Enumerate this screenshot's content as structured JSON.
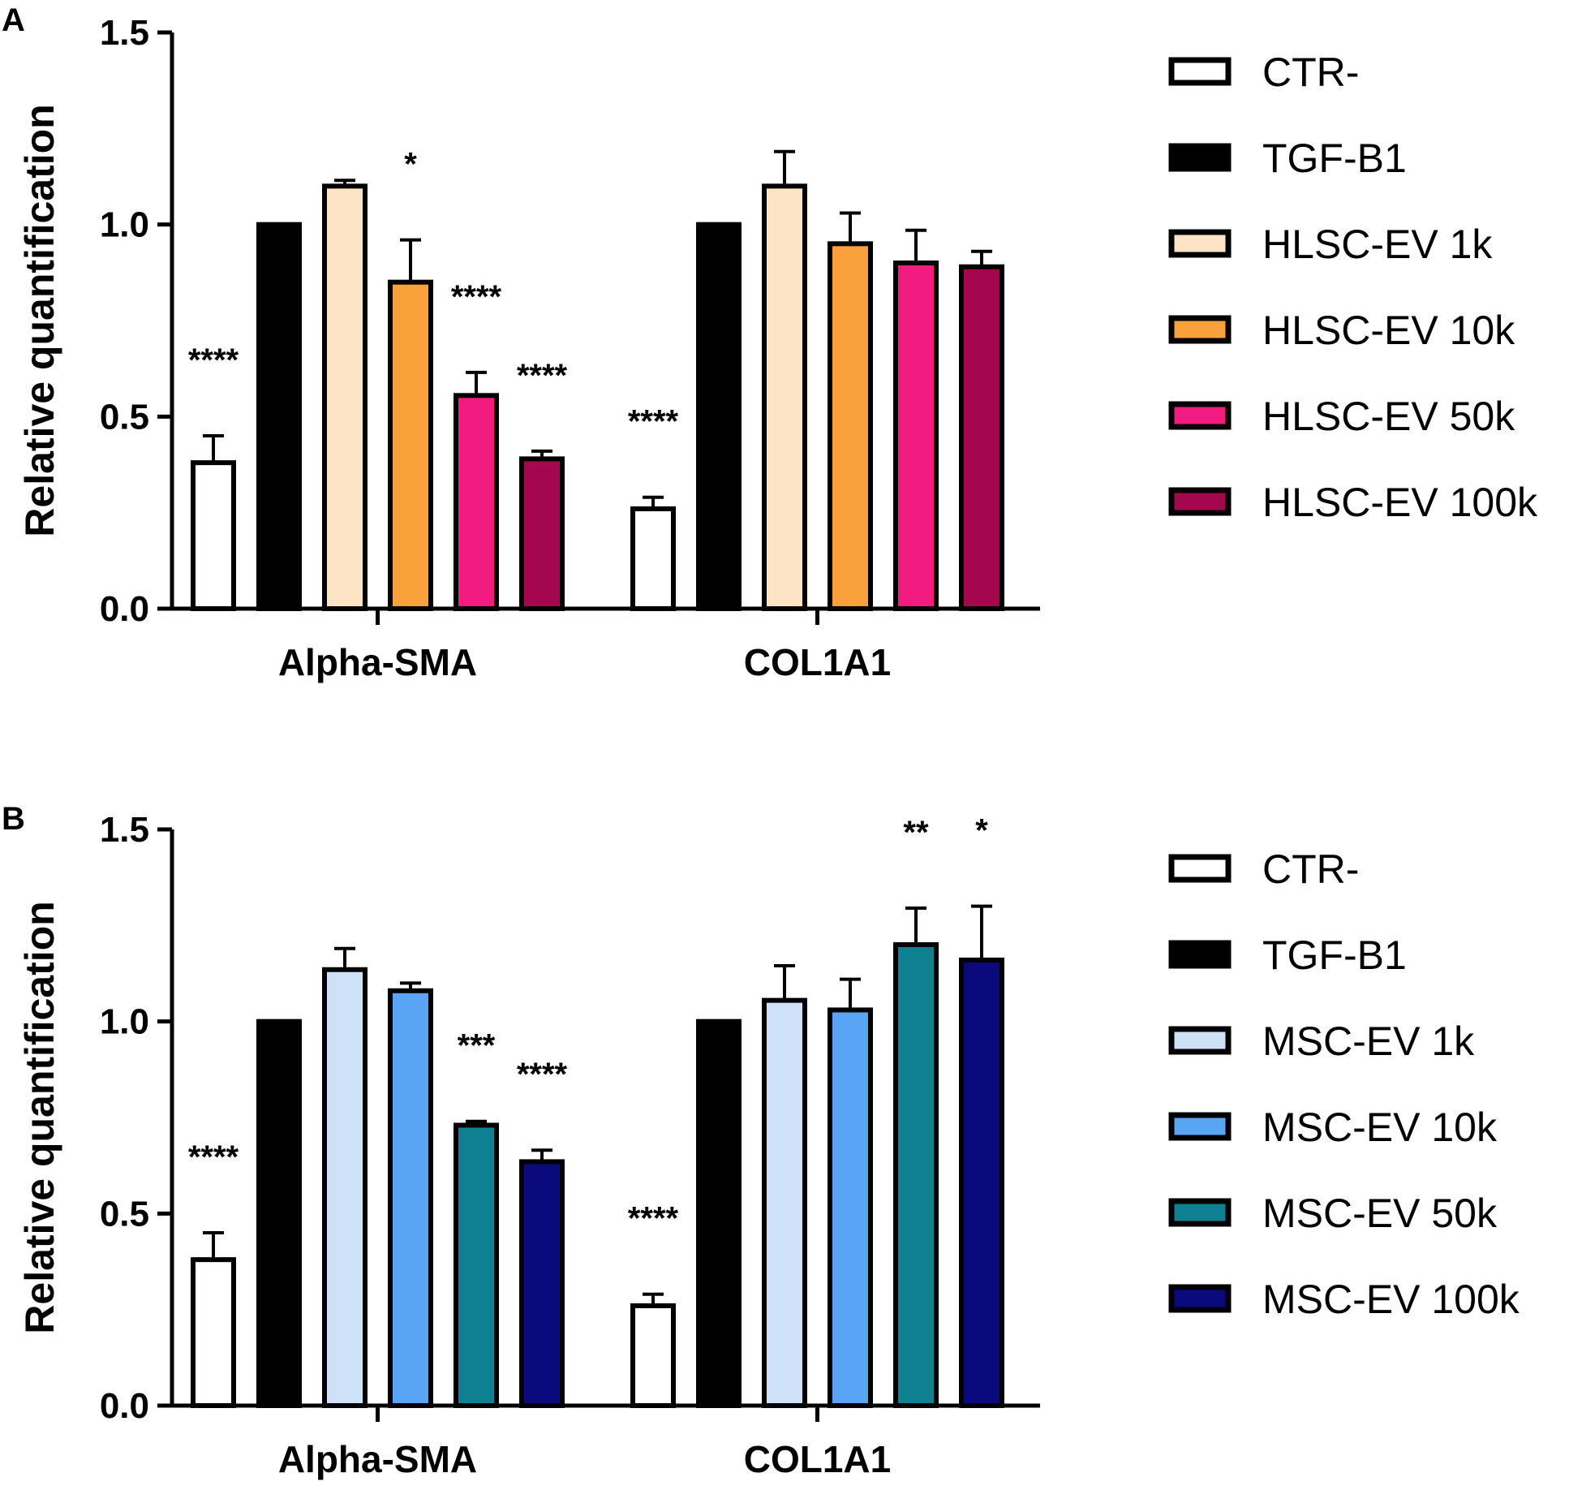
{
  "chart_data": [
    {
      "panel": "A",
      "type": "bar",
      "ylabel": "Relative quantification",
      "ylim": [
        0,
        1.5
      ],
      "yticks": [
        "0.0",
        "0.5",
        "1.0",
        "1.5"
      ],
      "categories": [
        "Alpha-SMA",
        "COL1A1"
      ],
      "series": [
        {
          "name": "CTR-",
          "color": "#ffffff",
          "values": [
            0.38,
            0.26
          ],
          "errors": [
            0.07,
            0.03
          ],
          "sig": [
            "****",
            "****"
          ]
        },
        {
          "name": "TGF-B1",
          "color": "#000000",
          "values": [
            1.0,
            1.0
          ],
          "errors": [
            0,
            0
          ],
          "sig": [
            "",
            ""
          ]
        },
        {
          "name": "HLSC-EV 1k",
          "color": "#fde4c4",
          "values": [
            1.1,
            1.1
          ],
          "errors": [
            0.015,
            0.09
          ],
          "sig": [
            "",
            ""
          ]
        },
        {
          "name": "HLSC-EV 10k",
          "color": "#f9a23c",
          "values": [
            0.85,
            0.95
          ],
          "errors": [
            0.11,
            0.08
          ],
          "sig": [
            "*",
            ""
          ]
        },
        {
          "name": "HLSC-EV 50k",
          "color": "#f21c7f",
          "values": [
            0.555,
            0.9
          ],
          "errors": [
            0.06,
            0.085
          ],
          "sig": [
            "****",
            ""
          ]
        },
        {
          "name": "HLSC-EV 100k",
          "color": "#a5074e",
          "values": [
            0.39,
            0.89
          ],
          "errors": [
            0.02,
            0.04
          ],
          "sig": [
            "****",
            ""
          ]
        }
      ]
    },
    {
      "panel": "B",
      "type": "bar",
      "ylabel": "Relative quantification",
      "ylim": [
        0,
        1.5
      ],
      "yticks": [
        "0.0",
        "0.5",
        "1.0",
        "1.5"
      ],
      "categories": [
        "Alpha-SMA",
        "COL1A1"
      ],
      "series": [
        {
          "name": "CTR-",
          "color": "#ffffff",
          "values": [
            0.38,
            0.26
          ],
          "errors": [
            0.07,
            0.03
          ],
          "sig": [
            "****",
            "****"
          ]
        },
        {
          "name": "TGF-B1",
          "color": "#000000",
          "values": [
            1.0,
            1.0
          ],
          "errors": [
            0,
            0
          ],
          "sig": [
            "",
            ""
          ]
        },
        {
          "name": "MSC-EV 1k",
          "color": "#cfe1f7",
          "values": [
            1.135,
            1.055
          ],
          "errors": [
            0.055,
            0.09
          ],
          "sig": [
            "",
            ""
          ]
        },
        {
          "name": "MSC-EV 10k",
          "color": "#5aa4f5",
          "values": [
            1.08,
            1.03
          ],
          "errors": [
            0.02,
            0.08
          ],
          "sig": [
            "",
            ""
          ]
        },
        {
          "name": "MSC-EV 50k",
          "color": "#0d8191",
          "values": [
            0.73,
            1.2
          ],
          "errors": [
            0.01,
            0.095
          ],
          "sig": [
            "***",
            "**"
          ]
        },
        {
          "name": "MSC-EV 100k",
          "color": "#0a0a7c",
          "values": [
            0.635,
            1.16
          ],
          "errors": [
            0.03,
            0.14
          ],
          "sig": [
            "****",
            "*"
          ]
        }
      ]
    }
  ]
}
